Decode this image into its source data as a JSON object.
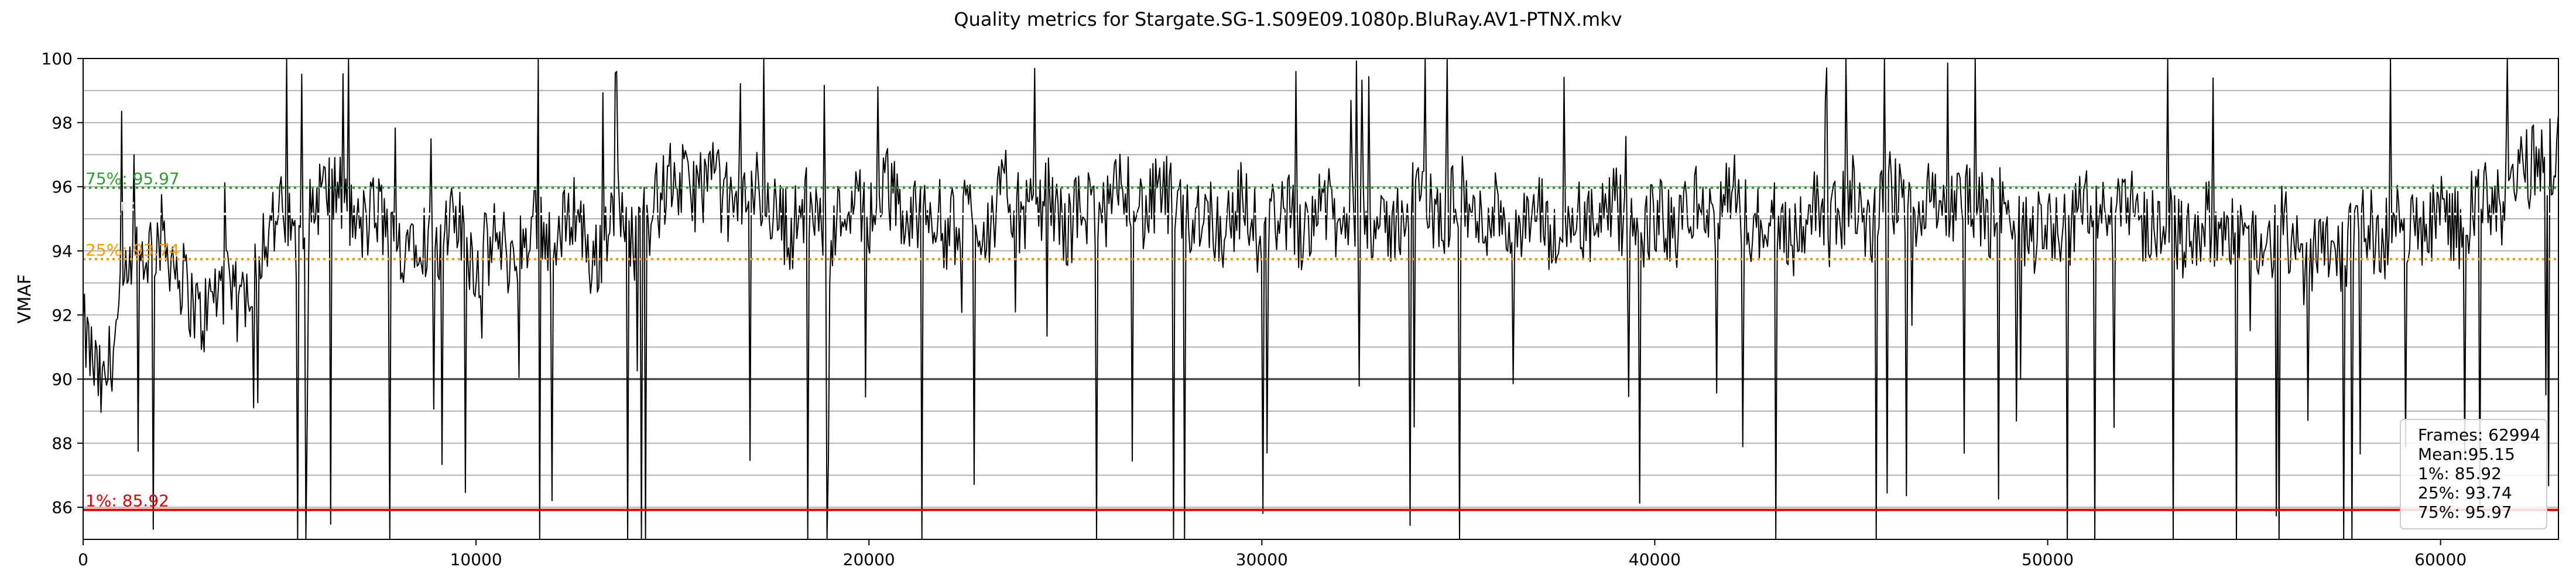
{
  "chart_data": {
    "type": "line",
    "title": "Quality metrics for Stargate.SG-1.S09E09.1080p.BluRay.AV1-PTNX.mkv",
    "xlabel": "",
    "ylabel": "VMAF",
    "xlim": [
      0,
      63000
    ],
    "ylim": [
      85,
      100
    ],
    "x_ticks": [
      0,
      10000,
      20000,
      30000,
      40000,
      50000,
      60000
    ],
    "y_ticks": [
      86,
      88,
      90,
      92,
      94,
      96,
      98,
      100
    ],
    "grid": true,
    "series": [
      {
        "color": "#000000",
        "points": [
          [
            0,
            91.5
          ],
          [
            500,
            89.5
          ],
          [
            1000,
            92.5
          ],
          [
            1500,
            93.8
          ],
          [
            2000,
            94.5
          ],
          [
            2500,
            93.2
          ],
          [
            3000,
            91.8
          ],
          [
            3500,
            93.0
          ],
          [
            4000,
            92.2
          ],
          [
            4500,
            94.2
          ],
          [
            5000,
            95.2
          ],
          [
            5500,
            94.0
          ],
          [
            6000,
            95.8
          ],
          [
            6500,
            95.9
          ],
          [
            7000,
            94.6
          ],
          [
            7500,
            95.3
          ],
          [
            8000,
            94.0
          ],
          [
            8500,
            94.8
          ],
          [
            9000,
            93.8
          ],
          [
            9500,
            95.0
          ],
          [
            10000,
            93.5
          ],
          [
            10500,
            94.4
          ],
          [
            11000,
            93.6
          ],
          [
            11500,
            95.2
          ],
          [
            12000,
            94.0
          ],
          [
            12500,
            95.5
          ],
          [
            13000,
            93.4
          ],
          [
            13500,
            95.6
          ],
          [
            14000,
            94.2
          ],
          [
            14500,
            95.3
          ],
          [
            15000,
            96.3
          ],
          [
            15500,
            95.8
          ],
          [
            16000,
            96.4
          ],
          [
            16500,
            95.2
          ],
          [
            17000,
            96.1
          ],
          [
            17500,
            95.4
          ],
          [
            18000,
            94.6
          ],
          [
            18500,
            95.6
          ],
          [
            19000,
            94.2
          ],
          [
            19500,
            95.8
          ],
          [
            20000,
            95.0
          ],
          [
            20500,
            96.0
          ],
          [
            21000,
            94.8
          ],
          [
            21500,
            95.6
          ],
          [
            22000,
            94.5
          ],
          [
            22500,
            95.3
          ],
          [
            23000,
            94.7
          ],
          [
            23500,
            95.9
          ],
          [
            24000,
            94.9
          ],
          [
            24500,
            95.8
          ],
          [
            25000,
            94.6
          ],
          [
            25500,
            95.5
          ],
          [
            26000,
            94.9
          ],
          [
            26500,
            96.2
          ],
          [
            27000,
            95.1
          ],
          [
            27500,
            95.9
          ],
          [
            28000,
            94.8
          ],
          [
            28500,
            95.4
          ],
          [
            29000,
            94.6
          ],
          [
            29500,
            95.6
          ],
          [
            30000,
            94.3
          ],
          [
            30500,
            95.5
          ],
          [
            31000,
            94.6
          ],
          [
            31500,
            95.8
          ],
          [
            32000,
            94.5
          ],
          [
            32500,
            95.7
          ],
          [
            33000,
            94.4
          ],
          [
            33500,
            95.0
          ],
          [
            34000,
            96.0
          ],
          [
            34500,
            94.8
          ],
          [
            35000,
            95.9
          ],
          [
            35500,
            94.7
          ],
          [
            36000,
            95.5
          ],
          [
            36500,
            94.2
          ],
          [
            37000,
            95.3
          ],
          [
            37500,
            94.0
          ],
          [
            38000,
            95.1
          ],
          [
            38500,
            94.6
          ],
          [
            39000,
            95.4
          ],
          [
            39500,
            94.1
          ],
          [
            40000,
            95.2
          ],
          [
            40500,
            94.5
          ],
          [
            41000,
            95.6
          ],
          [
            41500,
            94.8
          ],
          [
            42000,
            95.9
          ],
          [
            42500,
            94.6
          ],
          [
            43000,
            95.3
          ],
          [
            43500,
            94.4
          ],
          [
            44000,
            95.5
          ],
          [
            44500,
            94.7
          ],
          [
            45000,
            95.8
          ],
          [
            45500,
            94.6
          ],
          [
            46000,
            95.9
          ],
          [
            46500,
            95.0
          ],
          [
            47000,
            96.2
          ],
          [
            47500,
            95.1
          ],
          [
            48000,
            95.8
          ],
          [
            48500,
            94.9
          ],
          [
            49000,
            95.6
          ],
          [
            49500,
            94.4
          ],
          [
            50000,
            95.0
          ],
          [
            50500,
            94.6
          ],
          [
            51000,
            95.7
          ],
          [
            51500,
            94.8
          ],
          [
            52000,
            96.0
          ],
          [
            52500,
            94.6
          ],
          [
            53000,
            95.3
          ],
          [
            53500,
            94.2
          ],
          [
            54000,
            95.1
          ],
          [
            54500,
            94.0
          ],
          [
            55000,
            95.0
          ],
          [
            55500,
            93.8
          ],
          [
            56000,
            94.8
          ],
          [
            56500,
            93.5
          ],
          [
            57000,
            94.6
          ],
          [
            57500,
            93.9
          ],
          [
            58000,
            95.0
          ],
          [
            58500,
            94.2
          ],
          [
            59000,
            95.1
          ],
          [
            59500,
            94.4
          ],
          [
            60000,
            95.3
          ],
          [
            60500,
            94.7
          ],
          [
            61000,
            95.6
          ],
          [
            61500,
            95.2
          ],
          [
            62000,
            96.4
          ],
          [
            62500,
            96.8
          ],
          [
            62994,
            97.0
          ]
        ]
      }
    ],
    "reference_lines": [
      {
        "label": "75%: 95.97",
        "value": 95.97,
        "color": "#2ca02c",
        "style": "dotted"
      },
      {
        "label": "Mean: 95.15",
        "value": 95.15,
        "color": "#ffffff",
        "style": "dotted"
      },
      {
        "label": "25%: 93.74",
        "value": 93.74,
        "color": "#ff9900",
        "style": "dotted"
      },
      {
        "label": "1%: 85.92",
        "value": 85.92,
        "color": "#e00000",
        "style": "solid"
      }
    ],
    "legend": {
      "placement": "bottom-right",
      "lines": [
        "Frames: 62994",
        "Mean:95.15",
        "1%: 85.92",
        "25%: 93.74",
        "75%: 95.97"
      ]
    }
  }
}
